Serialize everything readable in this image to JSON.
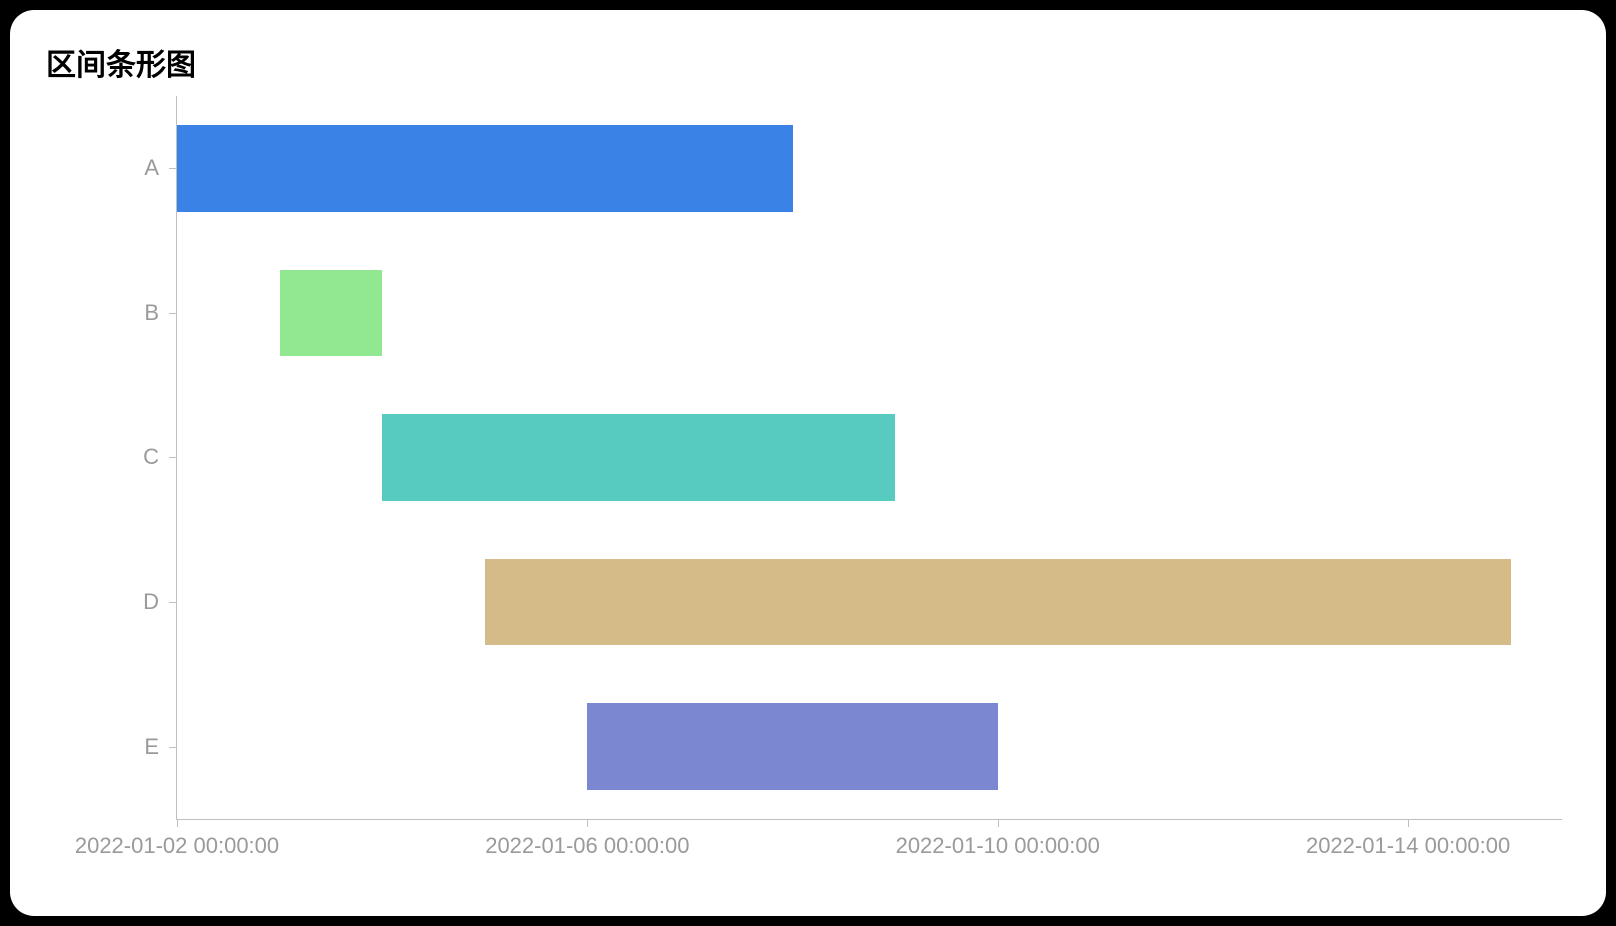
{
  "title": "区间条形图",
  "chart": {
    "type": "range-bar",
    "background_color": "#ffffff",
    "axis_color": "#bfbfbf",
    "label_color": "#9a9a9a",
    "title_color": "#000000",
    "title_fontsize": 30,
    "label_fontsize": 22,
    "bar_height_ratio": 0.6,
    "x_axis": {
      "min": "2022-01-02 00:00:00",
      "max": "2022-01-15 12:00:00",
      "ticks": [
        {
          "value": "2022-01-02 00:00:00",
          "label": "2022-01-02 00:00:00"
        },
        {
          "value": "2022-01-06 00:00:00",
          "label": "2022-01-06 00:00:00"
        },
        {
          "value": "2022-01-10 00:00:00",
          "label": "2022-01-10 00:00:00"
        },
        {
          "value": "2022-01-14 00:00:00",
          "label": "2022-01-14 00:00:00"
        }
      ]
    },
    "categories": [
      "A",
      "B",
      "C",
      "D",
      "E"
    ],
    "bars": [
      {
        "category": "A",
        "start": "2022-01-02 00:00:00",
        "end": "2022-01-08 00:00:00",
        "color": "#3b82e6"
      },
      {
        "category": "B",
        "start": "2022-01-03 00:00:00",
        "end": "2022-01-04 00:00:00",
        "color": "#91e891"
      },
      {
        "category": "C",
        "start": "2022-01-04 00:00:00",
        "end": "2022-01-09 00:00:00",
        "color": "#58cbc1"
      },
      {
        "category": "D",
        "start": "2022-01-05 00:00:00",
        "end": "2022-01-15 00:00:00",
        "color": "#d4bb87"
      },
      {
        "category": "E",
        "start": "2022-01-06 00:00:00",
        "end": "2022-01-10 00:00:00",
        "color": "#7b87d1"
      }
    ]
  }
}
